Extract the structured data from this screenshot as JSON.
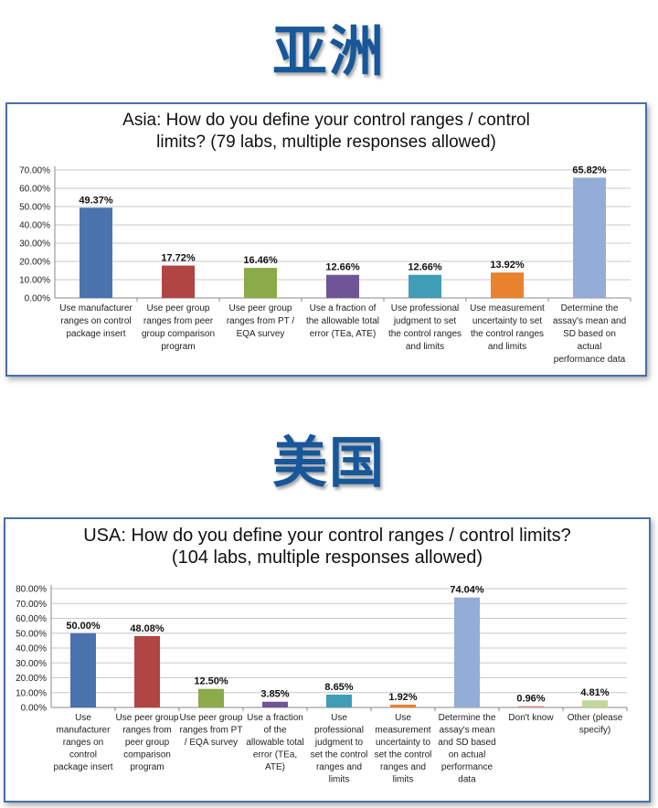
{
  "sections": [
    {
      "heading": "亚洲"
    },
    {
      "heading": "美国"
    }
  ],
  "chart_data": [
    {
      "type": "bar",
      "title_lines": [
        "Asia: How do you define your control ranges / control",
        "limits? (79 labs, multiple responses allowed)"
      ],
      "xlabel": "",
      "ylabel": "",
      "ylim": [
        0,
        70
      ],
      "yticks": [
        "0.00%",
        "10.00%",
        "20.00%",
        "30.00%",
        "40.00%",
        "50.00%",
        "60.00%",
        "70.00%"
      ],
      "grid": true,
      "categories": [
        [
          "Use manufacturer",
          "ranges on control",
          "package insert"
        ],
        [
          "Use peer group",
          "ranges from peer",
          "group comparison",
          "program"
        ],
        [
          "Use peer group",
          "ranges from PT /",
          "EQA survey"
        ],
        [
          "Use a fraction of",
          "the allowable total",
          "error (TEa, ATE)"
        ],
        [
          "Use professional",
          "judgment to set",
          "the control ranges",
          "and limits"
        ],
        [
          "Use measurement",
          "uncertainty to set",
          "the control ranges",
          "and limits"
        ],
        [
          "Determine the",
          "assay's mean and",
          "SD based on",
          "actual",
          "performance data"
        ]
      ],
      "values": [
        49.37,
        17.72,
        16.46,
        12.66,
        12.66,
        13.92,
        65.82
      ],
      "value_labels": [
        "49.37%",
        "17.72%",
        "16.46%",
        "12.66%",
        "12.66%",
        "13.92%",
        "65.82%"
      ],
      "colors": [
        "#4a72ad",
        "#b04543",
        "#8aab48",
        "#6f5597",
        "#3f9db5",
        "#e8822f",
        "#93add6"
      ]
    },
    {
      "type": "bar",
      "title_lines": [
        "USA: How do you define your control ranges / control limits?",
        "(104 labs, multiple responses allowed)"
      ],
      "xlabel": "",
      "ylabel": "",
      "ylim": [
        0,
        80
      ],
      "yticks": [
        "0.00%",
        "10.00%",
        "20.00%",
        "30.00%",
        "40.00%",
        "50.00%",
        "60.00%",
        "70.00%",
        "80.00%"
      ],
      "grid": true,
      "categories": [
        [
          "Use",
          "manufacturer",
          "ranges on",
          "control",
          "package insert"
        ],
        [
          "Use peer group",
          "ranges from",
          "peer group",
          "comparison",
          "program"
        ],
        [
          "Use peer group",
          "ranges from PT",
          "/ EQA survey"
        ],
        [
          "Use a fraction",
          "of the",
          "allowable total",
          "error (TEa,",
          "ATE)"
        ],
        [
          "Use",
          "professional",
          "judgment to",
          "set the control",
          "ranges and",
          "limits"
        ],
        [
          "Use",
          "measurement",
          "uncertainty to",
          "set the control",
          "ranges and",
          "limits"
        ],
        [
          "Determine the",
          "assay's mean",
          "and SD based",
          "on actual",
          "performance",
          "data"
        ],
        [
          "Don't know"
        ],
        [
          "Other (please",
          "specify)"
        ]
      ],
      "values": [
        50.0,
        48.08,
        12.5,
        3.85,
        8.65,
        1.92,
        74.04,
        0.96,
        4.81
      ],
      "value_labels": [
        "50.00%",
        "48.08%",
        "12.50%",
        "3.85%",
        "8.65%",
        "1.92%",
        "74.04%",
        "0.96%",
        "4.81%"
      ],
      "colors": [
        "#4a72ad",
        "#b04543",
        "#8aab48",
        "#6f5597",
        "#3f9db5",
        "#e8822f",
        "#93add6",
        "#d99694",
        "#c3d69b"
      ]
    }
  ]
}
